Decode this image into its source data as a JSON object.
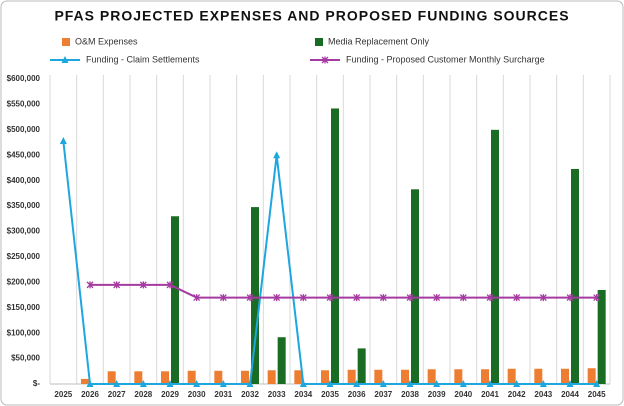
{
  "chart_data": {
    "type": "bar_line",
    "title": "PFAS PROJECTED EXPENSES AND PROPOSED FUNDING SOURCES",
    "categories": [
      "2025",
      "2026",
      "2027",
      "2028",
      "2029",
      "2030",
      "2031",
      "2032",
      "2033",
      "2034",
      "2035",
      "2036",
      "2037",
      "2038",
      "2039",
      "2040",
      "2041",
      "2042",
      "2043",
      "2044",
      "2045"
    ],
    "series": [
      {
        "name": "O&M Expenses",
        "type": "bar",
        "color": "#ed7d31",
        "values": [
          0,
          10000,
          25000,
          25000,
          25000,
          26000,
          26000,
          26000,
          27000,
          27000,
          27000,
          28000,
          28000,
          28000,
          29000,
          29000,
          29000,
          30000,
          30000,
          30000,
          31000
        ]
      },
      {
        "name": "Media Replacement Only",
        "type": "bar",
        "color": "#1a6b24",
        "values": [
          0,
          0,
          0,
          0,
          330000,
          0,
          0,
          348000,
          92000,
          0,
          542000,
          70000,
          0,
          383000,
          0,
          0,
          500000,
          0,
          0,
          423000,
          185000
        ]
      },
      {
        "name": "Funding - Claim Settlements",
        "type": "line",
        "marker": "triangle",
        "color": "#1ea7df",
        "values": [
          478000,
          0,
          0,
          0,
          0,
          0,
          0,
          0,
          450000,
          0,
          0,
          0,
          0,
          0,
          0,
          0,
          0,
          0,
          0,
          0,
          0
        ]
      },
      {
        "name": "Funding - Proposed Customer Monthly Surcharge",
        "type": "line",
        "marker": "star",
        "color": "#a53ba0",
        "values": [
          null,
          195000,
          195000,
          195000,
          195000,
          170000,
          170000,
          170000,
          170000,
          170000,
          170000,
          170000,
          170000,
          170000,
          170000,
          170000,
          170000,
          170000,
          170000,
          170000,
          170000
        ]
      }
    ],
    "ylim": [
      0,
      600000
    ],
    "yticks": [
      {
        "value": 0,
        "label": "$-"
      },
      {
        "value": 50000,
        "label": "$50,000"
      },
      {
        "value": 100000,
        "label": "$100,000"
      },
      {
        "value": 150000,
        "label": "$150,000"
      },
      {
        "value": 200000,
        "label": "$200,000"
      },
      {
        "value": 250000,
        "label": "$250,000"
      },
      {
        "value": 300000,
        "label": "$300,000"
      },
      {
        "value": 350000,
        "label": "$350,000"
      },
      {
        "value": 400000,
        "label": "$400,000"
      },
      {
        "value": 450000,
        "label": "$450,000"
      },
      {
        "value": 500000,
        "label": "$500,000"
      },
      {
        "value": 550000,
        "label": "$550,000"
      },
      {
        "value": 600000,
        "label": "$600,000"
      }
    ]
  }
}
